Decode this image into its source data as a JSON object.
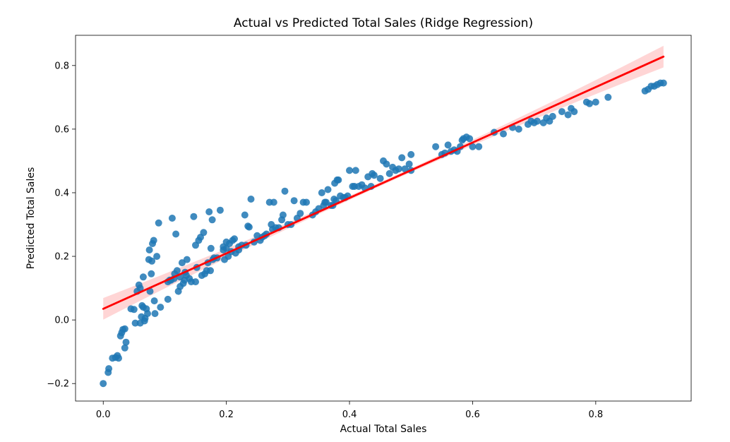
{
  "chart_data": {
    "type": "scatter",
    "title": "Actual vs Predicted Total Sales (Ridge Regression)",
    "xlabel": "Actual Total Sales",
    "ylabel": "Predicted Total Sales",
    "xlim": [
      -0.045,
      0.955
    ],
    "ylim": [
      -0.255,
      0.895
    ],
    "xticks": [
      0.0,
      0.2,
      0.4,
      0.6,
      0.8
    ],
    "xtick_labels": [
      "0.0",
      "0.2",
      "0.4",
      "0.6",
      "0.8"
    ],
    "yticks": [
      -0.2,
      0.0,
      0.2,
      0.4,
      0.6,
      0.8
    ],
    "ytick_labels": [
      "−0.2",
      "0.0",
      "0.2",
      "0.4",
      "0.6",
      "0.8"
    ],
    "grid": false,
    "point_color": "#1f77b4",
    "line_color": "#ff0000",
    "band_color": "#ffb3b3",
    "regression_line": {
      "x": [
        0.0,
        0.91
      ],
      "y": [
        0.035,
        0.828
      ]
    },
    "points": [
      [
        0.0,
        -0.2
      ],
      [
        0.008,
        -0.165
      ],
      [
        0.009,
        -0.153
      ],
      [
        0.015,
        -0.12
      ],
      [
        0.02,
        -0.118
      ],
      [
        0.023,
        -0.112
      ],
      [
        0.025,
        -0.12
      ],
      [
        0.028,
        -0.05
      ],
      [
        0.03,
        -0.04
      ],
      [
        0.032,
        -0.03
      ],
      [
        0.035,
        -0.028
      ],
      [
        0.035,
        -0.088
      ],
      [
        0.037,
        -0.07
      ],
      [
        0.045,
        0.035
      ],
      [
        0.05,
        0.033
      ],
      [
        0.052,
        -0.01
      ],
      [
        0.055,
        0.09
      ],
      [
        0.058,
        0.11
      ],
      [
        0.06,
        0.1
      ],
      [
        0.06,
        -0.01
      ],
      [
        0.062,
        0.01
      ],
      [
        0.063,
        0.045
      ],
      [
        0.065,
        0.04
      ],
      [
        0.065,
        0.135
      ],
      [
        0.067,
        -0.003
      ],
      [
        0.068,
        0.005
      ],
      [
        0.07,
        0.035
      ],
      [
        0.072,
        0.02
      ],
      [
        0.074,
        0.19
      ],
      [
        0.075,
        0.22
      ],
      [
        0.076,
        0.09
      ],
      [
        0.078,
        0.145
      ],
      [
        0.079,
        0.185
      ],
      [
        0.08,
        0.24
      ],
      [
        0.082,
        0.25
      ],
      [
        0.083,
        0.06
      ],
      [
        0.084,
        0.02
      ],
      [
        0.087,
        0.2
      ],
      [
        0.09,
        0.305
      ],
      [
        0.093,
        0.04
      ],
      [
        0.105,
        0.12
      ],
      [
        0.105,
        0.065
      ],
      [
        0.108,
        0.125
      ],
      [
        0.11,
        0.125
      ],
      [
        0.112,
        0.32
      ],
      [
        0.115,
        0.13
      ],
      [
        0.116,
        0.145
      ],
      [
        0.118,
        0.27
      ],
      [
        0.12,
        0.155
      ],
      [
        0.122,
        0.09
      ],
      [
        0.125,
        0.105
      ],
      [
        0.125,
        0.135
      ],
      [
        0.128,
        0.18
      ],
      [
        0.13,
        0.115
      ],
      [
        0.132,
        0.125
      ],
      [
        0.133,
        0.15
      ],
      [
        0.135,
        0.14
      ],
      [
        0.136,
        0.19
      ],
      [
        0.14,
        0.13
      ],
      [
        0.143,
        0.12
      ],
      [
        0.147,
        0.325
      ],
      [
        0.15,
        0.12
      ],
      [
        0.15,
        0.235
      ],
      [
        0.152,
        0.165
      ],
      [
        0.155,
        0.25
      ],
      [
        0.158,
        0.26
      ],
      [
        0.16,
        0.14
      ],
      [
        0.163,
        0.275
      ],
      [
        0.165,
        0.145
      ],
      [
        0.168,
        0.155
      ],
      [
        0.17,
        0.18
      ],
      [
        0.172,
        0.34
      ],
      [
        0.174,
        0.155
      ],
      [
        0.175,
        0.225
      ],
      [
        0.177,
        0.315
      ],
      [
        0.178,
        0.19
      ],
      [
        0.18,
        0.195
      ],
      [
        0.185,
        0.195
      ],
      [
        0.19,
        0.345
      ],
      [
        0.195,
        0.22
      ],
      [
        0.195,
        0.23
      ],
      [
        0.197,
        0.19
      ],
      [
        0.2,
        0.225
      ],
      [
        0.2,
        0.245
      ],
      [
        0.203,
        0.2
      ],
      [
        0.205,
        0.24
      ],
      [
        0.208,
        0.215
      ],
      [
        0.21,
        0.25
      ],
      [
        0.213,
        0.255
      ],
      [
        0.215,
        0.21
      ],
      [
        0.22,
        0.23
      ],
      [
        0.22,
        0.22
      ],
      [
        0.225,
        0.235
      ],
      [
        0.23,
        0.33
      ],
      [
        0.232,
        0.235
      ],
      [
        0.235,
        0.295
      ],
      [
        0.237,
        0.292
      ],
      [
        0.24,
        0.38
      ],
      [
        0.245,
        0.245
      ],
      [
        0.25,
        0.265
      ],
      [
        0.255,
        0.25
      ],
      [
        0.258,
        0.26
      ],
      [
        0.262,
        0.265
      ],
      [
        0.265,
        0.27
      ],
      [
        0.27,
        0.37
      ],
      [
        0.273,
        0.3
      ],
      [
        0.275,
        0.285
      ],
      [
        0.277,
        0.37
      ],
      [
        0.28,
        0.29
      ],
      [
        0.285,
        0.29
      ],
      [
        0.29,
        0.315
      ],
      [
        0.292,
        0.33
      ],
      [
        0.295,
        0.405
      ],
      [
        0.3,
        0.3
      ],
      [
        0.305,
        0.3
      ],
      [
        0.31,
        0.375
      ],
      [
        0.315,
        0.32
      ],
      [
        0.32,
        0.335
      ],
      [
        0.325,
        0.37
      ],
      [
        0.33,
        0.37
      ],
      [
        0.34,
        0.33
      ],
      [
        0.345,
        0.34
      ],
      [
        0.35,
        0.35
      ],
      [
        0.355,
        0.4
      ],
      [
        0.358,
        0.36
      ],
      [
        0.36,
        0.37
      ],
      [
        0.362,
        0.37
      ],
      [
        0.365,
        0.41
      ],
      [
        0.37,
        0.36
      ],
      [
        0.373,
        0.36
      ],
      [
        0.375,
        0.38
      ],
      [
        0.376,
        0.43
      ],
      [
        0.378,
        0.375
      ],
      [
        0.38,
        0.44
      ],
      [
        0.382,
        0.44
      ],
      [
        0.385,
        0.39
      ],
      [
        0.39,
        0.385
      ],
      [
        0.393,
        0.385
      ],
      [
        0.397,
        0.39
      ],
      [
        0.4,
        0.47
      ],
      [
        0.405,
        0.42
      ],
      [
        0.408,
        0.42
      ],
      [
        0.41,
        0.47
      ],
      [
        0.415,
        0.42
      ],
      [
        0.42,
        0.425
      ],
      [
        0.425,
        0.415
      ],
      [
        0.43,
        0.45
      ],
      [
        0.435,
        0.42
      ],
      [
        0.437,
        0.46
      ],
      [
        0.44,
        0.455
      ],
      [
        0.45,
        0.445
      ],
      [
        0.455,
        0.5
      ],
      [
        0.46,
        0.49
      ],
      [
        0.465,
        0.46
      ],
      [
        0.47,
        0.48
      ],
      [
        0.475,
        0.47
      ],
      [
        0.48,
        0.475
      ],
      [
        0.485,
        0.51
      ],
      [
        0.49,
        0.475
      ],
      [
        0.497,
        0.49
      ],
      [
        0.5,
        0.52
      ],
      [
        0.5,
        0.47
      ],
      [
        0.54,
        0.545
      ],
      [
        0.55,
        0.52
      ],
      [
        0.555,
        0.525
      ],
      [
        0.56,
        0.55
      ],
      [
        0.565,
        0.53
      ],
      [
        0.57,
        0.535
      ],
      [
        0.575,
        0.53
      ],
      [
        0.58,
        0.545
      ],
      [
        0.583,
        0.565
      ],
      [
        0.585,
        0.57
      ],
      [
        0.59,
        0.575
      ],
      [
        0.595,
        0.57
      ],
      [
        0.6,
        0.545
      ],
      [
        0.61,
        0.545
      ],
      [
        0.635,
        0.59
      ],
      [
        0.65,
        0.585
      ],
      [
        0.665,
        0.605
      ],
      [
        0.675,
        0.6
      ],
      [
        0.69,
        0.615
      ],
      [
        0.695,
        0.625
      ],
      [
        0.7,
        0.62
      ],
      [
        0.705,
        0.625
      ],
      [
        0.715,
        0.62
      ],
      [
        0.72,
        0.635
      ],
      [
        0.725,
        0.625
      ],
      [
        0.73,
        0.64
      ],
      [
        0.745,
        0.655
      ],
      [
        0.755,
        0.645
      ],
      [
        0.76,
        0.665
      ],
      [
        0.765,
        0.655
      ],
      [
        0.785,
        0.685
      ],
      [
        0.79,
        0.68
      ],
      [
        0.8,
        0.685
      ],
      [
        0.82,
        0.7
      ],
      [
        0.88,
        0.72
      ],
      [
        0.885,
        0.725
      ],
      [
        0.89,
        0.735
      ],
      [
        0.895,
        0.735
      ],
      [
        0.9,
        0.74
      ],
      [
        0.905,
        0.745
      ],
      [
        0.91,
        0.745
      ]
    ]
  }
}
